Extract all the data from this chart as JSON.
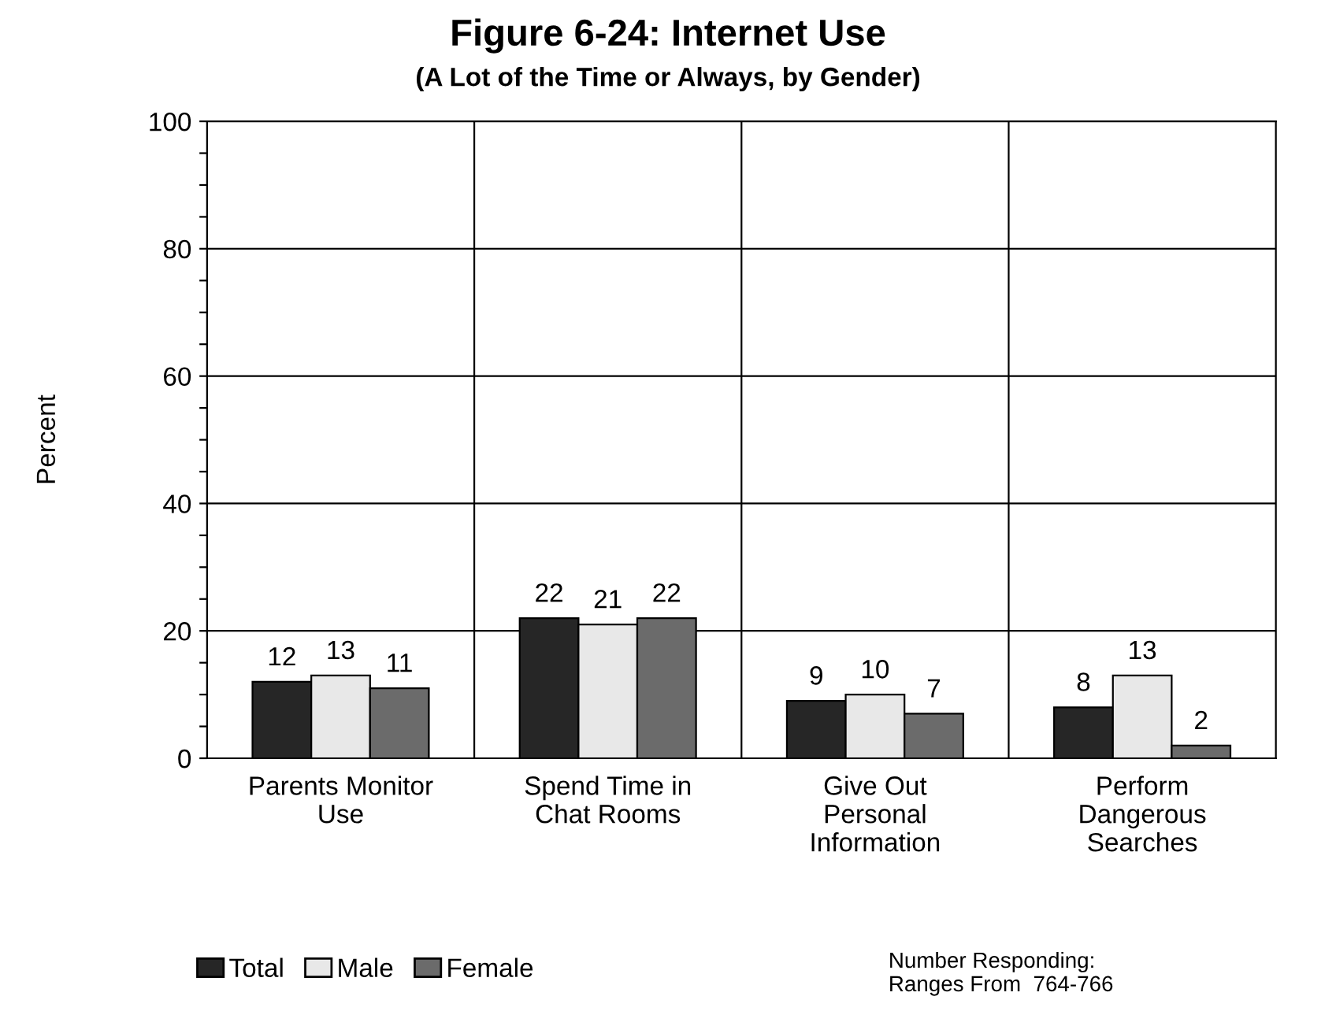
{
  "chart_data": {
    "type": "bar",
    "title": "Figure 6-24: Internet Use",
    "subtitle": "(A Lot of the Time or Always, by Gender)",
    "ylabel": "Percent",
    "categories": [
      "Parents Monitor\nUse",
      "Spend Time in\nChat Rooms",
      "Give Out\nPersonal\nInformation",
      "Perform\nDangerous\nSearches"
    ],
    "series": [
      {
        "name": "Total",
        "color": "#262626",
        "values": [
          12,
          22,
          9,
          8
        ]
      },
      {
        "name": "Male",
        "color": "#e8e8e8",
        "values": [
          13,
          21,
          10,
          13
        ]
      },
      {
        "name": "Female",
        "color": "#6b6b6b",
        "values": [
          11,
          22,
          7,
          2
        ]
      }
    ],
    "ylim": [
      0,
      100
    ],
    "yticks": [
      0,
      {
        "value": 5,
        "label": null
      },
      {
        "value": 10,
        "label": null
      },
      {
        "value": 15,
        "label": null
      },
      20,
      {
        "value": 25,
        "label": null
      },
      {
        "value": 30,
        "label": null
      },
      {
        "value": 35,
        "label": null
      },
      40,
      {
        "value": 45,
        "label": null
      },
      {
        "value": 50,
        "label": null
      },
      {
        "value": 55,
        "label": null
      },
      60,
      {
        "value": 65,
        "label": null
      },
      {
        "value": 70,
        "label": null
      },
      {
        "value": 75,
        "label": null
      },
      80,
      {
        "value": 85,
        "label": null
      },
      {
        "value": 90,
        "label": null
      },
      {
        "value": 95,
        "label": null
      },
      100
    ],
    "grid": true,
    "data_labels": true,
    "legend": "bottom left",
    "annotations": [
      "Number Responding:\nRanges From  764-766"
    ]
  }
}
